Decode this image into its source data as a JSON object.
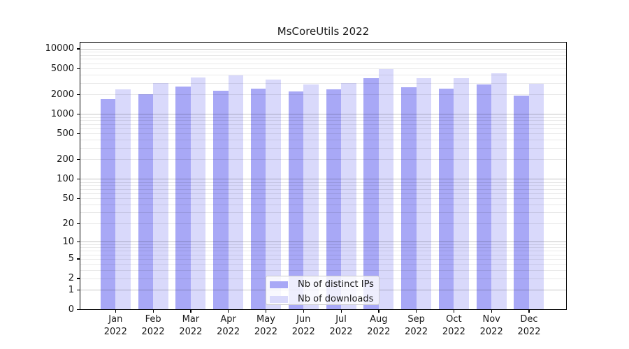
{
  "title": "MsCoreUtils 2022",
  "chart_data": {
    "type": "bar",
    "title": "MsCoreUtils 2022",
    "categories": [
      "Jan",
      "Feb",
      "Mar",
      "Apr",
      "May",
      "Jun",
      "Jul",
      "Aug",
      "Sep",
      "Oct",
      "Nov",
      "Dec"
    ],
    "x_year_line": "2022",
    "series": [
      {
        "name": "Nb of distinct IPs",
        "color": "#a8a8f6",
        "values": [
          1700,
          2050,
          2700,
          2300,
          2500,
          2250,
          2400,
          3550,
          2600,
          2450,
          2850,
          1950
        ]
      },
      {
        "name": "Nb of downloads",
        "color": "#d9d9fb",
        "values": [
          2400,
          3000,
          3650,
          3950,
          3400,
          2900,
          3050,
          4900,
          3550,
          3600,
          4250,
          2950
        ]
      }
    ],
    "xlabel": "",
    "ylabel": "",
    "yscale": "log1p",
    "ylim": [
      0,
      12750
    ],
    "y_ticks": [
      10000,
      5000,
      2000,
      1000,
      500,
      200,
      100,
      50,
      20,
      10,
      5,
      2,
      1,
      0
    ],
    "grid": "major+minor horizontal, drawn over bars",
    "legend_position": "lower center",
    "colors": {
      "axis": "#000000",
      "major_grid": "#bfbfbf",
      "minor_grid": "#e9e9e9",
      "text": "#191919",
      "legend_border": "#cccccc",
      "legend_background": "rgba(255,255,255,0.8)"
    }
  }
}
